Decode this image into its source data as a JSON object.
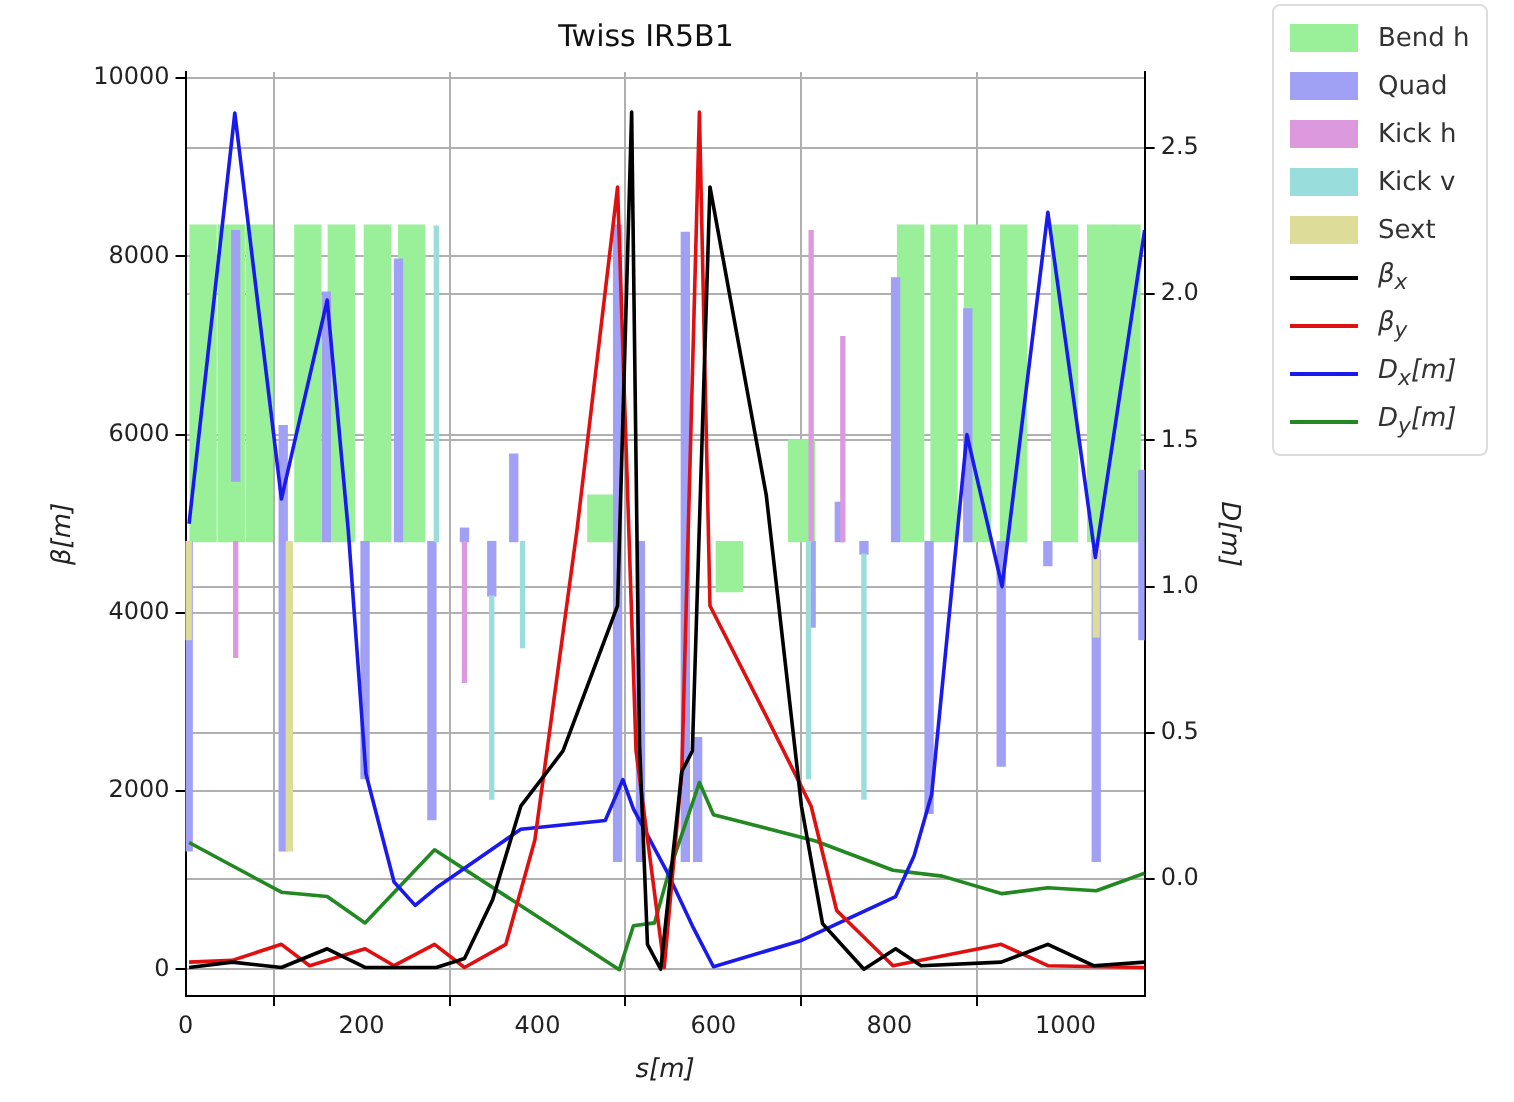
{
  "chart_data": {
    "type": "line",
    "title": "Twiss IR5B1",
    "xlabel": "s[m]",
    "ylabel": "β[m]",
    "y2label": "D[m]",
    "xlim": [
      0,
      1090
    ],
    "xticks": [
      0,
      200,
      400,
      600,
      800,
      1000
    ],
    "ylim": [
      -300,
      10070
    ],
    "yticks": [
      0,
      2000,
      4000,
      6000,
      8000,
      10000
    ],
    "y2lim": [
      -0.4,
      2.76
    ],
    "y2ticks": [
      {
        "value": 0,
        "label": "0.0"
      },
      0.5,
      {
        "value": 1,
        "label": "1.0"
      },
      1.5,
      {
        "value": 2,
        "label": "2.0"
      },
      2.5
    ],
    "grid": true,
    "legend": "top right",
    "series": [
      {
        "name": "Bend h",
        "type": "bar",
        "color": "#99f099",
        "x": [
          20,
          52,
          84,
          139,
          177,
          218,
          257,
          472,
          618,
          700,
          824,
          862,
          900,
          941,
          999,
          1040,
          1070
        ],
        "base": [
          4800,
          4800,
          4800,
          4800,
          4800,
          4800,
          4800,
          4800,
          4240,
          4800,
          4800,
          4800,
          4800,
          4800,
          4800,
          4800,
          4800
        ],
        "values": [
          3550,
          3550,
          3550,
          3550,
          3550,
          3550,
          3550,
          520,
          560,
          1140,
          3550,
          3550,
          3550,
          3550,
          3550,
          3550,
          3550
        ]
      },
      {
        "name": "Quad",
        "type": "bar",
        "color": "#a0a0f5",
        "x": [
          3,
          57,
          111,
          160,
          204,
          242,
          280,
          317,
          348,
          373,
          491,
          517,
          568,
          582,
          711,
          743,
          771,
          807,
          845,
          889,
          927,
          980,
          1035,
          1088
        ],
        "base": [
          1330,
          5480,
          1330,
          4800,
          2140,
          4800,
          1680,
          4800,
          4190,
          4800,
          1210,
          1210,
          1210,
          1210,
          3840,
          4800,
          4660,
          4800,
          1750,
          4800,
          2280,
          4530,
          1210,
          3700
        ],
        "values": [
          3470,
          2810,
          4770,
          2800,
          2660,
          3170,
          3120,
          150,
          610,
          980,
          7140,
          3590,
          7060,
          1390,
          960,
          440,
          140,
          2960,
          3050,
          2610,
          2520,
          270,
          3490,
          1900
        ]
      },
      {
        "name": "Kick h",
        "type": "bar",
        "color": "#dd99dd",
        "x": [
          57,
          317,
          711,
          747
        ],
        "base": [
          3500,
          3220,
          4800,
          4800
        ],
        "values": [
          1300,
          1580,
          3490,
          2300
        ]
      },
      {
        "name": "Kick v",
        "type": "bar",
        "color": "#99dddd",
        "x": [
          285,
          348,
          383,
          708,
          771
        ],
        "base": [
          4800,
          1910,
          3610,
          2140,
          1910
        ],
        "values": [
          3540,
          2280,
          1190,
          2660,
          2750
        ]
      },
      {
        "name": "Sext",
        "type": "bar",
        "color": "#dddd99",
        "x": [
          3,
          118,
          1035
        ],
        "base": [
          3700,
          1330,
          3730
        ],
        "values": [
          1100,
          3470,
          1070
        ]
      },
      {
        "name": "β$_{x}$",
        "color": "#000000",
        "x": [
          4,
          53,
          109,
          161,
          204,
          285,
          317,
          349,
          381,
          429,
          491,
          507,
          516,
          525,
          540,
          564,
          576,
          596,
          660,
          700,
          724,
          771,
          807,
          836,
          927,
          980,
          1032,
          1090
        ],
        "values": [
          20,
          80,
          20,
          230,
          20,
          20,
          120,
          780,
          1830,
          2450,
          4080,
          9620,
          2520,
          280,
          0,
          2220,
          2450,
          8780,
          5320,
          1830,
          510,
          0,
          230,
          40,
          80,
          280,
          40,
          80
        ]
      },
      {
        "name": "β$_{y}$",
        "color": "#e01010",
        "x": [
          4,
          53,
          109,
          141,
          204,
          237,
          283,
          317,
          364,
          397,
          445,
          491,
          512,
          544,
          564,
          584,
          596,
          660,
          711,
          740,
          804,
          927,
          980,
          1090
        ],
        "values": [
          80,
          100,
          280,
          40,
          230,
          40,
          280,
          20,
          280,
          1450,
          4940,
          8780,
          2450,
          20,
          2220,
          9620,
          4080,
          2840,
          1830,
          660,
          40,
          280,
          40,
          20
        ]
      },
      {
        "name": "D$_{x}$[m]",
        "axis": "y2",
        "color": "#1a1aee",
        "x": [
          4,
          56,
          109,
          161,
          185,
          205,
          237,
          261,
          285,
          381,
          477,
          497,
          509,
          548,
          576,
          600,
          700,
          807,
          828,
          848,
          888,
          928,
          980,
          1034,
          1090
        ],
        "values": [
          1.215,
          2.62,
          1.3,
          1.98,
          1.19,
          0.36,
          -0.01,
          -0.09,
          -0.03,
          0.17,
          0.2,
          0.34,
          0.24,
          0.02,
          -0.16,
          -0.3,
          -0.21,
          -0.06,
          0.08,
          0.29,
          1.52,
          1.0,
          2.28,
          1.1,
          2.22
        ]
      },
      {
        "name": "D$_{y}$[m]",
        "axis": "y2",
        "color": "#228822",
        "x": [
          4,
          109,
          161,
          204,
          283,
          493,
          509,
          533,
          548,
          584,
          600,
          716,
          804,
          860,
          928,
          980,
          1035,
          1090
        ],
        "values": [
          0.125,
          -0.045,
          -0.06,
          -0.15,
          0.1,
          -0.31,
          -0.16,
          -0.15,
          0.01,
          0.33,
          0.22,
          0.13,
          0.03,
          0.01,
          -0.05,
          -0.03,
          -0.04,
          0.02
        ]
      }
    ]
  }
}
